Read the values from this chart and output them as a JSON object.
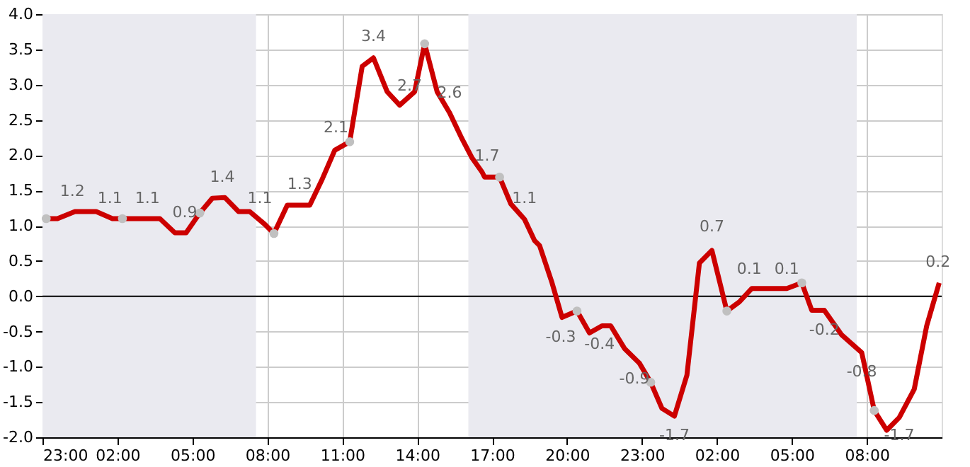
{
  "chart_data": {
    "type": "line",
    "x": [
      "2000-01-01T23:09",
      "2000-01-01T23:36",
      "2000-01-02T00:18",
      "2000-01-02T01:09",
      "2000-01-02T01:48",
      "2000-01-02T02:12",
      "2000-01-02T03:42",
      "2000-01-02T04:18",
      "2000-01-02T04:45",
      "2000-01-02T05:18",
      "2000-01-02T05:48",
      "2000-01-02T06:18",
      "2000-01-02T06:51",
      "2000-01-02T07:18",
      "2000-01-02T07:54",
      "2000-01-02T08:16",
      "2000-01-02T08:48",
      "2000-01-02T09:42",
      "2000-01-02T10:12",
      "2000-01-02T10:42",
      "2000-01-02T11:18",
      "2000-01-02T11:48",
      "2000-01-02T12:15",
      "2000-01-02T12:48",
      "2000-01-02T13:18",
      "2000-01-02T13:54",
      "2000-01-02T14:18",
      "2000-01-02T14:48",
      "2000-01-02T15:18",
      "2000-01-02T15:48",
      "2000-01-02T16:12",
      "2000-01-02T16:36",
      "2000-01-02T16:42",
      "2000-01-02T17:18",
      "2000-01-02T17:45",
      "2000-01-02T18:18",
      "2000-01-02T18:42",
      "2000-01-02T18:54",
      "2000-01-02T19:24",
      "2000-01-02T19:48",
      "2000-01-02T20:24",
      "2000-01-02T20:54",
      "2000-01-02T21:24",
      "2000-01-02T21:45",
      "2000-01-02T22:18",
      "2000-01-02T22:54",
      "2000-01-02T23:21",
      "2000-01-02T23:48",
      "2000-01-03T00:18",
      "2000-01-03T00:48",
      "2000-01-03T01:18",
      "2000-01-03T01:48",
      "2000-01-03T02:24",
      "2000-01-03T02:54",
      "2000-01-03T03:24",
      "2000-01-03T04:48",
      "2000-01-03T05:24",
      "2000-01-03T05:48",
      "2000-01-03T06:18",
      "2000-01-03T07:00",
      "2000-01-03T07:48",
      "2000-01-03T08:18",
      "2000-01-03T08:48",
      "2000-01-03T09:18",
      "2000-01-03T09:54",
      "2000-01-03T10:24",
      "2000-01-03T10:54"
    ],
    "series": [
      {
        "type": "line",
        "color": "#cc0000",
        "values": [
          1.1,
          1.1,
          1.2,
          1.2,
          1.1,
          1.1,
          1.1,
          0.9,
          0.9,
          1.18,
          1.39,
          1.4,
          1.2,
          1.2,
          1.02,
          0.89,
          1.29,
          1.29,
          1.66,
          2.07,
          2.19,
          3.26,
          3.38,
          2.9,
          2.71,
          2.9,
          3.58,
          2.9,
          2.6,
          2.23,
          1.96,
          1.76,
          1.69,
          1.69,
          1.31,
          1.09,
          0.79,
          0.72,
          0.19,
          -0.3,
          -0.21,
          -0.52,
          -0.42,
          -0.42,
          -0.74,
          -0.95,
          -1.22,
          -1.59,
          -1.7,
          -1.12,
          0.47,
          0.65,
          -0.21,
          -0.08,
          0.11,
          0.11,
          0.19,
          -0.2,
          -0.2,
          -0.55,
          -0.8,
          -1.62,
          -1.9,
          -1.72,
          -1.32,
          -0.42,
          0.19
        ]
      },
      {
        "type": "scatter",
        "color": "#c0c0c0",
        "x": [
          "2000-01-01T23:09",
          "2000-01-02T02:12",
          "2000-01-02T05:18",
          "2000-01-02T08:16",
          "2000-01-02T11:18",
          "2000-01-02T14:18",
          "2000-01-02T17:18",
          "2000-01-02T20:24",
          "2000-01-02T23:21",
          "2000-01-03T02:24",
          "2000-01-03T05:24",
          "2000-01-03T08:18"
        ],
        "values": [
          1.1,
          1.1,
          1.18,
          0.89,
          2.19,
          3.58,
          1.69,
          -0.21,
          -1.22,
          -0.21,
          0.19,
          -1.62
        ]
      }
    ],
    "xlim": [
      "2000-01-01T23:00",
      "2000-01-03T11:00"
    ],
    "xticks": [
      {
        "value": "2000-01-01T23:00",
        "label": "23:00"
      },
      {
        "value": "2000-01-02T02:00",
        "label": "02:00"
      },
      {
        "value": "2000-01-02T05:00",
        "label": "05:00"
      },
      {
        "value": "2000-01-02T08:00",
        "label": "08:00"
      },
      {
        "value": "2000-01-02T11:00",
        "label": "11:00"
      },
      {
        "value": "2000-01-02T14:00",
        "label": "14:00"
      },
      {
        "value": "2000-01-02T17:00",
        "label": "17:00"
      },
      {
        "value": "2000-01-02T20:00",
        "label": "20:00"
      },
      {
        "value": "2000-01-02T23:00",
        "label": "23:00"
      },
      {
        "value": "2000-01-03T02:00",
        "label": "02:00"
      },
      {
        "value": "2000-01-03T05:00",
        "label": "05:00"
      },
      {
        "value": "2000-01-03T08:00",
        "label": "08:00"
      }
    ],
    "ylim": [
      -2,
      4
    ],
    "yticks": [
      {
        "value": -2,
        "label": "-2.0"
      },
      {
        "value": -1.5,
        "label": "-1.5"
      },
      {
        "value": -1,
        "label": "-1.0"
      },
      {
        "value": -0.5,
        "label": "-0.5"
      },
      {
        "value": 0,
        "label": "0.0"
      },
      {
        "value": 0.5,
        "label": "0.5"
      },
      {
        "value": 1,
        "label": "1.0"
      },
      {
        "value": 1.5,
        "label": "1.5"
      },
      {
        "value": 2,
        "label": "2.0"
      },
      {
        "value": 2.5,
        "label": "2.5"
      },
      {
        "value": 3,
        "label": "3.0"
      },
      {
        "value": 3.5,
        "label": "3.5"
      },
      {
        "value": 4,
        "label": "4.0"
      }
    ],
    "grid": true,
    "bands": [
      {
        "axis": "x",
        "from": "2000-01-01T23:00",
        "to": "2000-01-02T07:33",
        "color": "#eaeaf0"
      },
      {
        "axis": "x",
        "from": "2000-01-02T16:03",
        "to": "2000-01-03T07:36",
        "color": "#eaeaf0"
      }
    ],
    "ref_lines": [
      {
        "axis": "y",
        "value": 0,
        "color": "#000000"
      }
    ],
    "annotations": [
      {
        "text": "1.2",
        "x": "2000-01-02T00:12",
        "y": 1.2
      },
      {
        "text": "1.1",
        "x": "2000-01-02T01:42",
        "y": 1.1
      },
      {
        "text": "1.1",
        "x": "2000-01-02T03:12",
        "y": 1.1
      },
      {
        "text": "0.9",
        "x": "2000-01-02T04:42",
        "y": 0.9
      },
      {
        "text": "1.4",
        "x": "2000-01-02T06:12",
        "y": 1.4
      },
      {
        "text": "1.1",
        "x": "2000-01-02T07:42",
        "y": 1.1
      },
      {
        "text": "1.3",
        "x": "2000-01-02T09:18",
        "y": 1.3
      },
      {
        "text": "2.1",
        "x": "2000-01-02T10:45",
        "y": 2.1
      },
      {
        "text": "3.4",
        "x": "2000-01-02T12:15",
        "y": 3.4
      },
      {
        "text": "2.7",
        "x": "2000-01-02T13:42",
        "y": 2.7
      },
      {
        "text": "2.6",
        "x": "2000-01-02T15:18",
        "y": 2.6
      },
      {
        "text": "1.7",
        "x": "2000-01-02T16:48",
        "y": 1.7
      },
      {
        "text": "1.1",
        "x": "2000-01-02T18:18",
        "y": 1.1
      },
      {
        "text": "-0.3",
        "x": "2000-01-02T19:45",
        "y": -0.3
      },
      {
        "text": "-0.4",
        "x": "2000-01-02T21:18",
        "y": -0.4
      },
      {
        "text": "-0.9",
        "x": "2000-01-02T22:42",
        "y": -0.9
      },
      {
        "text": "-1.7",
        "x": "2000-01-03T00:18",
        "y": -1.7
      },
      {
        "text": "0.7",
        "x": "2000-01-03T01:48",
        "y": 0.7
      },
      {
        "text": "0.1",
        "x": "2000-01-03T03:18",
        "y": 0.1
      },
      {
        "text": "0.1",
        "x": "2000-01-03T04:48",
        "y": 0.1
      },
      {
        "text": "-0.2",
        "x": "2000-01-03T06:18",
        "y": -0.2
      },
      {
        "text": "-0.8",
        "x": "2000-01-03T07:48",
        "y": -0.8
      },
      {
        "text": "-1.7",
        "x": "2000-01-03T09:18",
        "y": -1.7
      },
      {
        "text": "0.2",
        "x": "2000-01-03T10:51",
        "y": 0.2
      }
    ]
  }
}
